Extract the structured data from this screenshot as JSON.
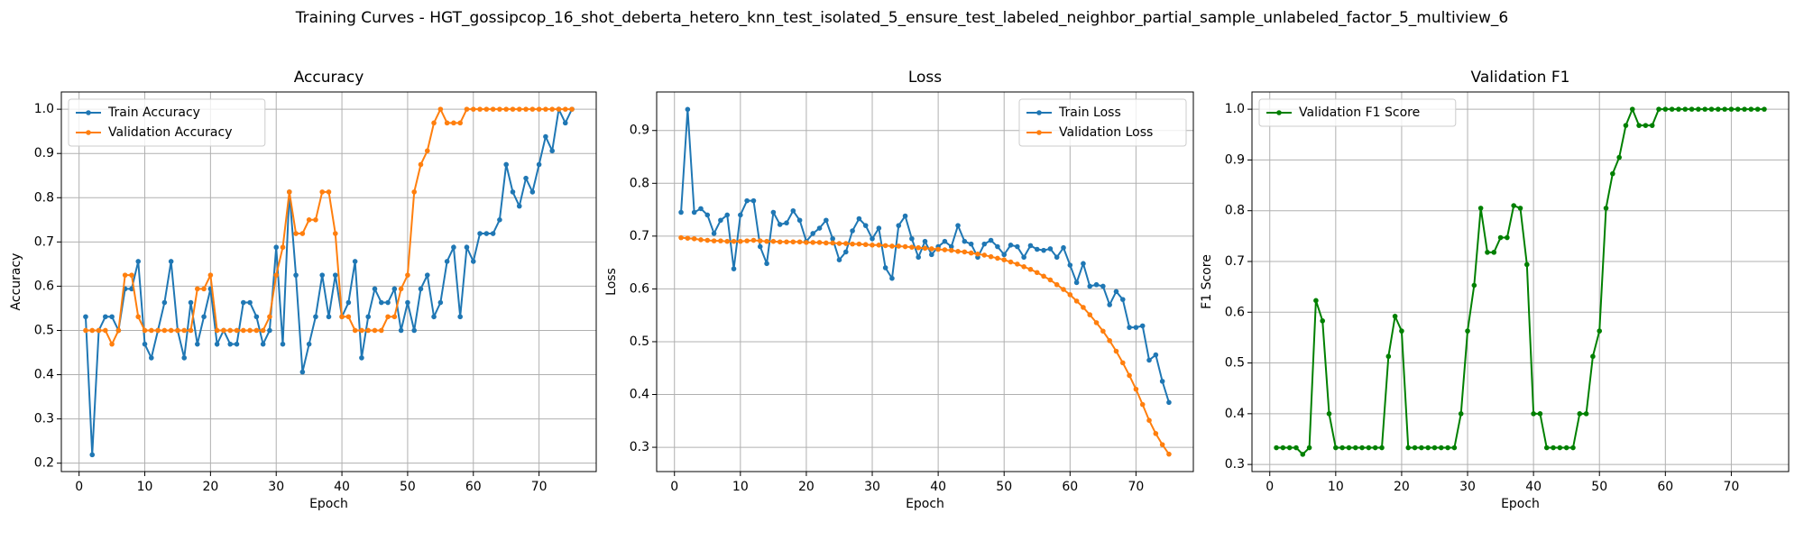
{
  "title": "Training Curves - HGT_gossipcop_16_shot_deberta_hetero_knn_test_isolated_5_ensure_test_labeled_neighbor_partial_sample_unlabeled_factor_5_multiview_6",
  "chart_data": [
    {
      "type": "line",
      "title": "Accuracy",
      "xlabel": "Epoch",
      "ylabel": "Accuracy",
      "x": [
        1,
        2,
        3,
        4,
        5,
        6,
        7,
        8,
        9,
        10,
        11,
        12,
        13,
        14,
        15,
        16,
        17,
        18,
        19,
        20,
        21,
        22,
        23,
        24,
        25,
        26,
        27,
        28,
        29,
        30,
        31,
        32,
        33,
        34,
        35,
        36,
        37,
        38,
        39,
        40,
        41,
        42,
        43,
        44,
        45,
        46,
        47,
        48,
        49,
        50,
        51,
        52,
        53,
        54,
        55,
        56,
        57,
        58,
        59,
        60,
        61,
        62,
        63,
        64,
        65,
        66,
        67,
        68,
        69,
        70,
        71,
        72,
        73,
        74,
        75
      ],
      "series": [
        {
          "name": "Train Accuracy",
          "color": "#1f77b4",
          "values": [
            0.531,
            0.219,
            0.5,
            0.531,
            0.531,
            0.5,
            0.594,
            0.594,
            0.656,
            0.469,
            0.438,
            0.5,
            0.563,
            0.656,
            0.5,
            0.438,
            0.563,
            0.469,
            0.531,
            0.594,
            0.469,
            0.5,
            0.469,
            0.469,
            0.563,
            0.563,
            0.531,
            0.469,
            0.5,
            0.688,
            0.469,
            0.813,
            0.625,
            0.406,
            0.469,
            0.531,
            0.625,
            0.531,
            0.625,
            0.531,
            0.563,
            0.656,
            0.438,
            0.531,
            0.594,
            0.563,
            0.563,
            0.594,
            0.5,
            0.563,
            0.5,
            0.594,
            0.625,
            0.531,
            0.563,
            0.656,
            0.688,
            0.531,
            0.688,
            0.656,
            0.719,
            0.719,
            0.719,
            0.75,
            0.875,
            0.813,
            0.781,
            0.844,
            0.813,
            0.875,
            0.938,
            0.906,
            1.0,
            0.969,
            1.0
          ]
        },
        {
          "name": "Validation Accuracy",
          "color": "#ff7f0e",
          "values": [
            0.5,
            0.5,
            0.5,
            0.5,
            0.469,
            0.5,
            0.625,
            0.625,
            0.531,
            0.5,
            0.5,
            0.5,
            0.5,
            0.5,
            0.5,
            0.5,
            0.5,
            0.594,
            0.594,
            0.625,
            0.5,
            0.5,
            0.5,
            0.5,
            0.5,
            0.5,
            0.5,
            0.5,
            0.531,
            0.625,
            0.688,
            0.813,
            0.719,
            0.719,
            0.75,
            0.75,
            0.813,
            0.813,
            0.719,
            0.531,
            0.531,
            0.5,
            0.5,
            0.5,
            0.5,
            0.5,
            0.531,
            0.531,
            0.594,
            0.625,
            0.813,
            0.875,
            0.906,
            0.969,
            1.0,
            0.969,
            0.969,
            0.969,
            1.0,
            1.0,
            1.0,
            1.0,
            1.0,
            1.0,
            1.0,
            1.0,
            1.0,
            1.0,
            1.0,
            1.0,
            1.0,
            1.0,
            1.0,
            1.0,
            1.0
          ]
        }
      ],
      "xlim": [
        -2.7,
        78.7
      ],
      "ylim": [
        0.181,
        1.039
      ],
      "xticks": [
        0,
        10,
        20,
        30,
        40,
        50,
        60,
        70
      ],
      "yticks": [
        0.2,
        0.3,
        0.4,
        0.5,
        0.6,
        0.7,
        0.8,
        0.9,
        {
          "value": 1.0,
          "label": "1.0"
        }
      ],
      "grid": true,
      "legend": "upper left"
    },
    {
      "type": "line",
      "title": "Loss",
      "xlabel": "Epoch",
      "ylabel": "Loss",
      "x": [
        1,
        2,
        3,
        4,
        5,
        6,
        7,
        8,
        9,
        10,
        11,
        12,
        13,
        14,
        15,
        16,
        17,
        18,
        19,
        20,
        21,
        22,
        23,
        24,
        25,
        26,
        27,
        28,
        29,
        30,
        31,
        32,
        33,
        34,
        35,
        36,
        37,
        38,
        39,
        40,
        41,
        42,
        43,
        44,
        45,
        46,
        47,
        48,
        49,
        50,
        51,
        52,
        53,
        54,
        55,
        56,
        57,
        58,
        59,
        60,
        61,
        62,
        63,
        64,
        65,
        66,
        67,
        68,
        69,
        70,
        71,
        72,
        73,
        74,
        75
      ],
      "series": [
        {
          "name": "Train Loss",
          "color": "#1f77b4",
          "values": [
            0.745,
            0.94,
            0.745,
            0.752,
            0.74,
            0.705,
            0.73,
            0.74,
            0.638,
            0.74,
            0.767,
            0.767,
            0.68,
            0.648,
            0.745,
            0.722,
            0.725,
            0.748,
            0.73,
            0.69,
            0.705,
            0.715,
            0.73,
            0.695,
            0.655,
            0.67,
            0.71,
            0.733,
            0.72,
            0.695,
            0.715,
            0.64,
            0.62,
            0.72,
            0.738,
            0.695,
            0.66,
            0.69,
            0.665,
            0.68,
            0.69,
            0.68,
            0.72,
            0.69,
            0.685,
            0.66,
            0.685,
            0.692,
            0.68,
            0.665,
            0.683,
            0.68,
            0.66,
            0.682,
            0.675,
            0.673,
            0.676,
            0.66,
            0.678,
            0.645,
            0.612,
            0.648,
            0.605,
            0.608,
            0.605,
            0.57,
            0.595,
            0.58,
            0.527,
            0.527,
            0.53,
            0.465,
            0.475,
            0.425,
            0.385
          ]
        },
        {
          "name": "Validation Loss",
          "color": "#ff7f0e",
          "values": [
            0.697,
            0.696,
            0.695,
            0.693,
            0.692,
            0.691,
            0.691,
            0.69,
            0.69,
            0.69,
            0.691,
            0.692,
            0.691,
            0.69,
            0.69,
            0.689,
            0.689,
            0.689,
            0.689,
            0.688,
            0.688,
            0.688,
            0.687,
            0.687,
            0.686,
            0.686,
            0.685,
            0.685,
            0.684,
            0.683,
            0.683,
            0.682,
            0.681,
            0.681,
            0.68,
            0.679,
            0.678,
            0.677,
            0.676,
            0.675,
            0.674,
            0.673,
            0.671,
            0.67,
            0.668,
            0.666,
            0.664,
            0.661,
            0.658,
            0.655,
            0.651,
            0.647,
            0.642,
            0.637,
            0.631,
            0.624,
            0.617,
            0.608,
            0.599,
            0.589,
            0.577,
            0.565,
            0.551,
            0.536,
            0.52,
            0.502,
            0.482,
            0.46,
            0.436,
            0.41,
            0.381,
            0.351,
            0.326,
            0.305,
            0.287
          ]
        }
      ],
      "xlim": [
        -2.7,
        78.7
      ],
      "ylim": [
        0.254,
        0.973
      ],
      "xticks": [
        0,
        10,
        20,
        30,
        40,
        50,
        60,
        70
      ],
      "yticks": [
        0.3,
        0.4,
        0.5,
        0.6,
        0.7,
        0.8,
        0.9
      ],
      "grid": true,
      "legend": "upper right"
    },
    {
      "type": "line",
      "title": "Validation F1",
      "xlabel": "Epoch",
      "ylabel": "F1 Score",
      "x": [
        1,
        2,
        3,
        4,
        5,
        6,
        7,
        8,
        9,
        10,
        11,
        12,
        13,
        14,
        15,
        16,
        17,
        18,
        19,
        20,
        21,
        22,
        23,
        24,
        25,
        26,
        27,
        28,
        29,
        30,
        31,
        32,
        33,
        34,
        35,
        36,
        37,
        38,
        39,
        40,
        41,
        42,
        43,
        44,
        45,
        46,
        47,
        48,
        49,
        50,
        51,
        52,
        53,
        54,
        55,
        56,
        57,
        58,
        59,
        60,
        61,
        62,
        63,
        64,
        65,
        66,
        67,
        68,
        69,
        70,
        71,
        72,
        73,
        74,
        75
      ],
      "series": [
        {
          "name": "Validation F1 Score",
          "color": "#008000",
          "values": [
            0.333,
            0.333,
            0.333,
            0.333,
            0.32,
            0.333,
            0.623,
            0.583,
            0.4,
            0.333,
            0.333,
            0.333,
            0.333,
            0.333,
            0.333,
            0.333,
            0.333,
            0.513,
            0.592,
            0.563,
            0.333,
            0.333,
            0.333,
            0.333,
            0.333,
            0.333,
            0.333,
            0.333,
            0.4,
            0.563,
            0.653,
            0.805,
            0.718,
            0.718,
            0.747,
            0.747,
            0.81,
            0.805,
            0.694,
            0.4,
            0.4,
            0.333,
            0.333,
            0.333,
            0.333,
            0.333,
            0.4,
            0.4,
            0.513,
            0.563,
            0.805,
            0.873,
            0.905,
            0.968,
            1.0,
            0.968,
            0.968,
            0.968,
            1.0,
            1.0,
            1.0,
            1.0,
            1.0,
            1.0,
            1.0,
            1.0,
            1.0,
            1.0,
            1.0,
            1.0,
            1.0,
            1.0,
            1.0,
            1.0,
            1.0
          ]
        }
      ],
      "xlim": [
        -2.7,
        78.7
      ],
      "ylim": [
        0.286,
        1.034
      ],
      "xticks": [
        0,
        10,
        20,
        30,
        40,
        50,
        60,
        70
      ],
      "yticks": [
        0.3,
        0.4,
        0.5,
        0.6,
        0.7,
        0.8,
        0.9,
        {
          "value": 1.0,
          "label": "1.0"
        }
      ],
      "grid": true,
      "legend": "upper left"
    }
  ]
}
